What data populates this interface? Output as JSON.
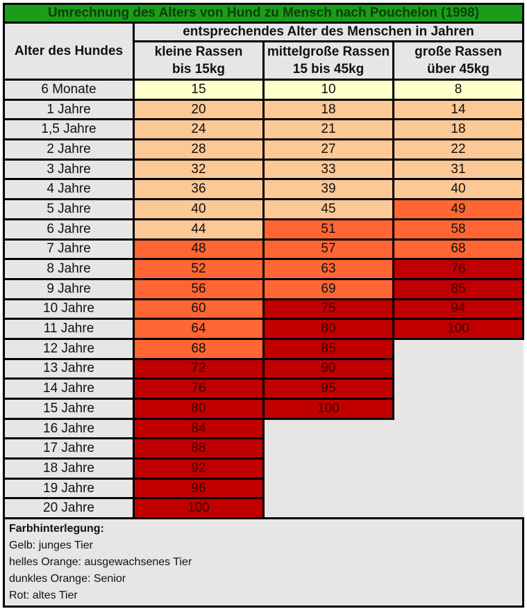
{
  "title": "Umrechnung des Alters von Hund zu Mensch nach Pouchelon (1998)",
  "header": {
    "dog_age": "Alter des Hundes",
    "human_age_group": "entsprechendes Alter des Menschen in Jahren",
    "columns": [
      {
        "line1": "kleine Rassen",
        "line2": "bis 15kg"
      },
      {
        "line1": "mittelgroße Rassen",
        "line2": "15 bis 45kg"
      },
      {
        "line1": "große Rassen",
        "line2": "über 45kg"
      }
    ]
  },
  "colors": {
    "yellow": "#ffffcc",
    "light_orange": "#fcc896",
    "dark_orange": "#ff6633",
    "red": "#c00000",
    "title_green": "#1a9e1a"
  },
  "rows": [
    {
      "age": "6 Monate",
      "cells": [
        {
          "v": "15",
          "c": "y"
        },
        {
          "v": "10",
          "c": "y"
        },
        {
          "v": "8",
          "c": "y"
        }
      ]
    },
    {
      "age": "1 Jahre",
      "cells": [
        {
          "v": "20",
          "c": "l"
        },
        {
          "v": "18",
          "c": "l"
        },
        {
          "v": "14",
          "c": "l"
        }
      ]
    },
    {
      "age": "1,5 Jahre",
      "cells": [
        {
          "v": "24",
          "c": "l"
        },
        {
          "v": "21",
          "c": "l"
        },
        {
          "v": "18",
          "c": "l"
        }
      ]
    },
    {
      "age": "2 Jahre",
      "cells": [
        {
          "v": "28",
          "c": "l"
        },
        {
          "v": "27",
          "c": "l"
        },
        {
          "v": "22",
          "c": "l"
        }
      ]
    },
    {
      "age": "3 Jahre",
      "cells": [
        {
          "v": "32",
          "c": "l"
        },
        {
          "v": "33",
          "c": "l"
        },
        {
          "v": "31",
          "c": "l"
        }
      ]
    },
    {
      "age": "4 Jahre",
      "cells": [
        {
          "v": "36",
          "c": "l"
        },
        {
          "v": "39",
          "c": "l"
        },
        {
          "v": "40",
          "c": "l"
        }
      ]
    },
    {
      "age": "5 Jahre",
      "cells": [
        {
          "v": "40",
          "c": "l"
        },
        {
          "v": "45",
          "c": "l"
        },
        {
          "v": "49",
          "c": "d"
        }
      ]
    },
    {
      "age": "6 Jahre",
      "cells": [
        {
          "v": "44",
          "c": "l"
        },
        {
          "v": "51",
          "c": "d"
        },
        {
          "v": "58",
          "c": "d"
        }
      ]
    },
    {
      "age": "7 Jahre",
      "cells": [
        {
          "v": "48",
          "c": "d"
        },
        {
          "v": "57",
          "c": "d"
        },
        {
          "v": "68",
          "c": "d"
        }
      ]
    },
    {
      "age": "8 Jahre",
      "cells": [
        {
          "v": "52",
          "c": "d"
        },
        {
          "v": "63",
          "c": "d"
        },
        {
          "v": "76",
          "c": "r"
        }
      ]
    },
    {
      "age": "9 Jahre",
      "cells": [
        {
          "v": "56",
          "c": "d"
        },
        {
          "v": "69",
          "c": "d"
        },
        {
          "v": "85",
          "c": "r"
        }
      ]
    },
    {
      "age": "10 Jahre",
      "cells": [
        {
          "v": "60",
          "c": "d"
        },
        {
          "v": "75",
          "c": "r"
        },
        {
          "v": "94",
          "c": "r"
        }
      ]
    },
    {
      "age": "11 Jahre",
      "cells": [
        {
          "v": "64",
          "c": "d"
        },
        {
          "v": "80",
          "c": "r"
        },
        {
          "v": "100",
          "c": "r"
        }
      ]
    },
    {
      "age": "12 Jahre",
      "cells": [
        {
          "v": "68",
          "c": "d"
        },
        {
          "v": "85",
          "c": "r"
        },
        null
      ]
    },
    {
      "age": "13 Jahre",
      "cells": [
        {
          "v": "72",
          "c": "r"
        },
        {
          "v": "90",
          "c": "r"
        },
        null
      ]
    },
    {
      "age": "14 Jahre",
      "cells": [
        {
          "v": "76",
          "c": "r"
        },
        {
          "v": "95",
          "c": "r"
        },
        null
      ]
    },
    {
      "age": "15 Jahre",
      "cells": [
        {
          "v": "80",
          "c": "r"
        },
        {
          "v": "100",
          "c": "r"
        },
        null
      ]
    },
    {
      "age": "16 Jahre",
      "cells": [
        {
          "v": "84",
          "c": "r"
        },
        null,
        null
      ]
    },
    {
      "age": "17 Jahre",
      "cells": [
        {
          "v": "88",
          "c": "r"
        },
        null,
        null
      ]
    },
    {
      "age": "18 Jahre",
      "cells": [
        {
          "v": "92",
          "c": "r"
        },
        null,
        null
      ]
    },
    {
      "age": "19 Jahre",
      "cells": [
        {
          "v": "96",
          "c": "r"
        },
        null,
        null
      ]
    },
    {
      "age": "20 Jahre",
      "cells": [
        {
          "v": "100",
          "c": "r"
        },
        null,
        null
      ]
    }
  ],
  "legend": {
    "title": "Farbhinterlegung:",
    "items": [
      "Gelb: junges Tier",
      "helles Orange: ausgewachsenes Tier",
      "dunkles Orange: Senior",
      "Rot: altes Tier"
    ]
  }
}
